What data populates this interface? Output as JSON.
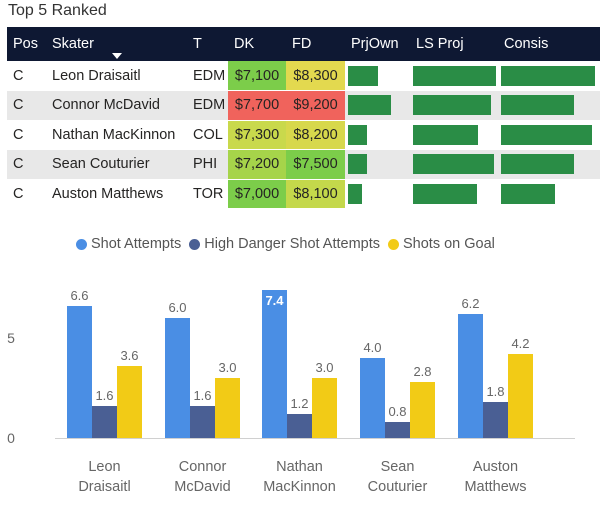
{
  "title": "Top 5 Ranked",
  "table": {
    "headers": {
      "pos": "Pos",
      "skater": "Skater",
      "team": "T",
      "dk": "DK",
      "fd": "FD",
      "prjown": "PrjOwn",
      "lsproj": "LS Proj",
      "consis": "Consis"
    },
    "sorted_column": "skater",
    "rows": [
      {
        "pos": "C",
        "skater": "Leon Draisaitl",
        "team": "EDM",
        "dk": "$7,100",
        "fd": "$8,300",
        "dk_color": "#7ccd4a",
        "fd_color": "#e3d94f",
        "prjown": 0.48,
        "lsproj": 0.98,
        "consis": 0.95
      },
      {
        "pos": "C",
        "skater": "Connor McDavid",
        "team": "EDM",
        "dk": "$7,700",
        "fd": "$9,200",
        "dk_color": "#f0635c",
        "fd_color": "#f0635c",
        "prjown": 0.7,
        "lsproj": 0.92,
        "consis": 0.74
      },
      {
        "pos": "C",
        "skater": "Nathan MacKinnon",
        "team": "COL",
        "dk": "$7,300",
        "fd": "$8,200",
        "dk_color": "#c9d94c",
        "fd_color": "#d7d84c",
        "prjown": 0.31,
        "lsproj": 0.77,
        "consis": 0.92
      },
      {
        "pos": "C",
        "skater": "Sean Couturier",
        "team": "PHI",
        "dk": "$7,200",
        "fd": "$7,500",
        "dk_color": "#a6d44a",
        "fd_color": "#7ccd4a",
        "prjown": 0.3,
        "lsproj": 0.95,
        "consis": 0.74
      },
      {
        "pos": "C",
        "skater": "Auston Matthews",
        "team": "TOR",
        "dk": "$7,000",
        "fd": "$8,100",
        "dk_color": "#7ccd4a",
        "fd_color": "#c4d84b",
        "prjown": 0.22,
        "lsproj": 0.75,
        "consis": 0.55
      }
    ]
  },
  "colors": {
    "header_bg": "#0e1833",
    "bar_green": "#2a8d46",
    "alt_row": "#e8e8e8"
  },
  "chart_data": {
    "type": "bar",
    "categories": [
      "Leon Draisaitl",
      "Connor McDavid",
      "Nathan MacKinnon",
      "Sean Couturier",
      "Auston Matthews"
    ],
    "category_lines": [
      [
        "Leon",
        "Draisaitl"
      ],
      [
        "Connor",
        "McDavid"
      ],
      [
        "Nathan",
        "MacKinnon"
      ],
      [
        "Sean",
        "Couturier"
      ],
      [
        "Auston",
        "Matthews"
      ]
    ],
    "series": [
      {
        "name": "Shot Attempts",
        "color": "#4a8ee4",
        "values": [
          6.6,
          6.0,
          7.4,
          4.0,
          6.2
        ]
      },
      {
        "name": "High Danger Shot Attempts",
        "color": "#4a5f94",
        "values": [
          1.6,
          1.6,
          1.2,
          0.8,
          1.8
        ]
      },
      {
        "name": "Shots on Goal",
        "color": "#f2cb16",
        "values": [
          3.6,
          3.0,
          3.0,
          2.8,
          4.2
        ]
      }
    ],
    "y_ticks": [
      "0",
      "5"
    ],
    "y_tick_values": [
      0,
      5
    ],
    "ylim": [
      0,
      8
    ],
    "legend_position": "top",
    "gridlines": false
  }
}
